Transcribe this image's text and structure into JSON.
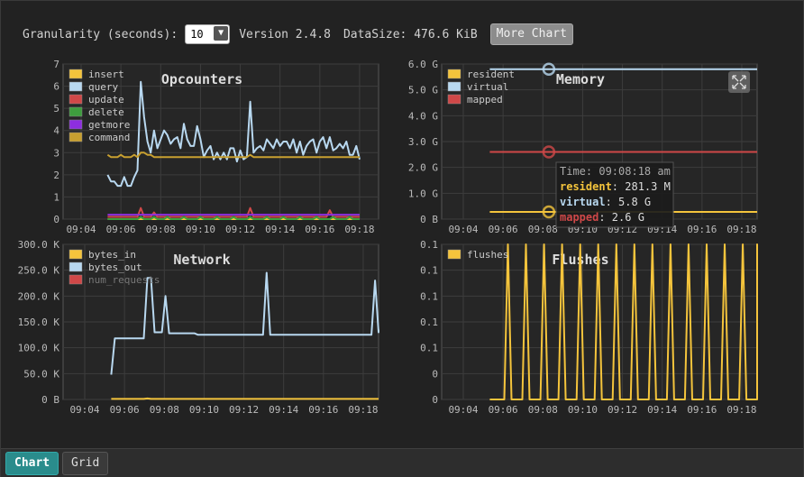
{
  "toolbar": {
    "granularity_label": "Granularity (seconds):",
    "granularity_value": "10",
    "version": "Version 2.4.8",
    "datasize": "DataSize: 476.6 KiB",
    "more_chart": "More Chart"
  },
  "tabs": {
    "chart": "Chart",
    "grid": "Grid"
  },
  "colors": {
    "yellow": "#f4c43c",
    "lightblue": "#b8d8f0",
    "red": "#d04848",
    "green": "#3e9e3e",
    "purple": "#8e2ee0",
    "gold": "#c8a030"
  },
  "tooltip": {
    "time": "Time: 09:08:18 am",
    "rows": [
      {
        "name": "resident",
        "value": ": 281.3 M",
        "color": "#f4c43c"
      },
      {
        "name": "virtual",
        "value": ": 5.8 G",
        "color": "#b8d8f0"
      },
      {
        "name": "mapped",
        "value": ": 2.6 G",
        "color": "#d04848"
      }
    ]
  },
  "chart_data": [
    {
      "type": "line",
      "title": "Opcounters",
      "x_ticks": [
        "09:04",
        "09:06",
        "09:08",
        "09:10",
        "09:12",
        "09:14",
        "09:16",
        "09:18"
      ],
      "y_ticks": [
        "0",
        "1",
        "2",
        "3",
        "4",
        "5",
        "6",
        "7"
      ],
      "ylim": [
        0,
        7
      ],
      "legend_position": "top-left",
      "series": [
        {
          "name": "insert",
          "color": "#f4c43c",
          "values": [
            0,
            0,
            0,
            0,
            0,
            0,
            0,
            0,
            0,
            0,
            0,
            0,
            0,
            0,
            0,
            0,
            0,
            0,
            0,
            0,
            0,
            0,
            0,
            0,
            0,
            0,
            0,
            0,
            0,
            0,
            0,
            0,
            0,
            0,
            0,
            0,
            0,
            0,
            0,
            0,
            0,
            0,
            0,
            0,
            0,
            0,
            0,
            0,
            0,
            0,
            0,
            0,
            0,
            0,
            0,
            0,
            0,
            0,
            0,
            0,
            0,
            0,
            0,
            0,
            0,
            0,
            0,
            0,
            0,
            0,
            0,
            0,
            0,
            0,
            0,
            0,
            0
          ]
        },
        {
          "name": "query",
          "color": "#b8d8f0",
          "values": [
            2.0,
            1.7,
            1.7,
            1.5,
            1.5,
            1.9,
            1.5,
            1.5,
            1.9,
            2.2,
            6.2,
            4.6,
            3.5,
            3.0,
            4.0,
            3.2,
            3.6,
            4.0,
            3.8,
            3.4,
            3.6,
            3.7,
            3.2,
            4.3,
            3.6,
            3.3,
            3.3,
            4.2,
            3.6,
            2.8,
            3.1,
            3.3,
            2.7,
            3.0,
            2.7,
            3.0,
            2.7,
            3.2,
            3.2,
            2.6,
            3.1,
            2.7,
            2.8,
            5.3,
            3.0,
            3.2,
            3.3,
            3.1,
            3.6,
            3.4,
            3.2,
            3.6,
            3.3,
            3.5,
            3.5,
            3.2,
            3.6,
            3.0,
            3.5,
            2.9,
            3.3,
            3.5,
            3.6,
            3.0,
            3.5,
            3.7,
            3.2,
            3.7,
            3.1,
            3.2,
            3.4,
            3.2,
            3.5,
            2.9,
            2.9,
            3.3,
            2.7
          ]
        },
        {
          "name": "update",
          "color": "#d04848",
          "values": [
            0.1,
            0.1,
            0.1,
            0.1,
            0.1,
            0.1,
            0.1,
            0.1,
            0.1,
            0.1,
            0.5,
            0.1,
            0.1,
            0.1,
            0.3,
            0.1,
            0.1,
            0.1,
            0.1,
            0.1,
            0.1,
            0.1,
            0.1,
            0.1,
            0.1,
            0.1,
            0.1,
            0.1,
            0.1,
            0.1,
            0.1,
            0.1,
            0.1,
            0.1,
            0.1,
            0.1,
            0.1,
            0.1,
            0.1,
            0.1,
            0.1,
            0.1,
            0.1,
            0.5,
            0.1,
            0.1,
            0.1,
            0.1,
            0.1,
            0.1,
            0.1,
            0.1,
            0.1,
            0.1,
            0.1,
            0.1,
            0.1,
            0.1,
            0.1,
            0.1,
            0.1,
            0.1,
            0.1,
            0.1,
            0.1,
            0.1,
            0.1,
            0.4,
            0.1,
            0.1,
            0.1,
            0.1,
            0.1,
            0.1,
            0.1,
            0.1,
            0.1
          ]
        },
        {
          "name": "delete",
          "color": "#3e9e3e",
          "values": [
            0,
            0,
            0,
            0,
            0,
            0,
            0,
            0,
            0,
            0,
            0.1,
            0,
            0,
            0,
            0.1,
            0,
            0,
            0,
            0.1,
            0,
            0,
            0,
            0,
            0.1,
            0,
            0,
            0,
            0,
            0.1,
            0,
            0,
            0,
            0,
            0.1,
            0,
            0,
            0,
            0,
            0.1,
            0,
            0,
            0,
            0,
            0.1,
            0,
            0,
            0,
            0,
            0.1,
            0,
            0,
            0,
            0,
            0.1,
            0,
            0,
            0,
            0,
            0.1,
            0,
            0,
            0,
            0,
            0.1,
            0,
            0,
            0,
            0,
            0.1,
            0,
            0,
            0,
            0,
            0.1,
            0,
            0,
            0
          ]
        },
        {
          "name": "getmore",
          "color": "#8e2ee0",
          "values": [
            0.2,
            0.2,
            0.2,
            0.2,
            0.2,
            0.2,
            0.2,
            0.2,
            0.2,
            0.2,
            0.2,
            0.2,
            0.2,
            0.2,
            0.2,
            0.2,
            0.2,
            0.2,
            0.2,
            0.2,
            0.2,
            0.2,
            0.2,
            0.2,
            0.2,
            0.2,
            0.2,
            0.2,
            0.2,
            0.2,
            0.2,
            0.2,
            0.2,
            0.2,
            0.2,
            0.2,
            0.2,
            0.2,
            0.2,
            0.2,
            0.2,
            0.2,
            0.2,
            0.2,
            0.2,
            0.2,
            0.2,
            0.2,
            0.2,
            0.2,
            0.2,
            0.2,
            0.2,
            0.2,
            0.2,
            0.2,
            0.2,
            0.2,
            0.2,
            0.2,
            0.2,
            0.2,
            0.2,
            0.2,
            0.2,
            0.2,
            0.2,
            0.2,
            0.2,
            0.2,
            0.2,
            0.2,
            0.2,
            0.2,
            0.2,
            0.2,
            0.2
          ]
        },
        {
          "name": "command",
          "color": "#c8a030",
          "values": [
            2.9,
            2.8,
            2.8,
            2.8,
            2.9,
            2.8,
            2.8,
            2.8,
            2.9,
            2.8,
            3.0,
            3.0,
            2.9,
            2.9,
            2.8,
            2.8,
            2.8,
            2.8,
            2.8,
            2.8,
            2.8,
            2.8,
            2.8,
            2.8,
            2.8,
            2.8,
            2.8,
            2.8,
            2.8,
            2.8,
            2.8,
            2.8,
            2.8,
            2.8,
            2.8,
            2.8,
            2.8,
            2.8,
            2.8,
            2.8,
            2.8,
            2.8,
            2.8,
            2.9,
            2.8,
            2.8,
            2.8,
            2.8,
            2.8,
            2.8,
            2.8,
            2.8,
            2.8,
            2.8,
            2.8,
            2.8,
            2.8,
            2.8,
            2.8,
            2.8,
            2.8,
            2.8,
            2.8,
            2.8,
            2.8,
            2.8,
            2.8,
            2.8,
            2.8,
            2.8,
            2.8,
            2.8,
            2.8,
            2.8,
            2.8,
            2.8,
            2.8
          ]
        }
      ],
      "x_start": "09:05:20",
      "x_step_seconds": 10
    },
    {
      "type": "line",
      "title": "Memory",
      "x_ticks": [
        "09:04",
        "09:06",
        "09:08",
        "09:10",
        "09:12",
        "09:14",
        "09:16",
        "09:18"
      ],
      "y_ticks": [
        "0 B",
        "1.0 G",
        "2.0 G",
        "3.0 G",
        "4.0 G",
        "5.0 G",
        "6.0 G"
      ],
      "ylim": [
        0,
        6
      ],
      "legend_position": "top-left",
      "series": [
        {
          "name": "resident",
          "color": "#f4c43c",
          "start": "09:05:20",
          "end": "09:19:40",
          "values_gb": [
            0.28,
            0.28
          ]
        },
        {
          "name": "virtual",
          "color": "#b8d8f0",
          "start": "09:05:20",
          "end": "09:19:40",
          "values_gb": [
            5.8,
            5.8
          ]
        },
        {
          "name": "mapped",
          "color": "#d04848",
          "start": "09:05:20",
          "end": "09:19:40",
          "values_gb": [
            2.6,
            2.6
          ]
        }
      ],
      "hover_time": "09:08:18"
    },
    {
      "type": "line",
      "title": "Network",
      "x_ticks": [
        "09:04",
        "09:06",
        "09:08",
        "09:10",
        "09:12",
        "09:14",
        "09:16",
        "09:18"
      ],
      "y_ticks": [
        "0 B",
        "50.0 K",
        "100.0 K",
        "150.0 K",
        "200.0 K",
        "250.0 K",
        "300.0 K"
      ],
      "ylim": [
        0,
        300
      ],
      "legend_position": "top-left",
      "series": [
        {
          "name": "bytes_in",
          "color": "#f4c43c",
          "values_kb": [
            1,
            1,
            1,
            1,
            1,
            1,
            1,
            1,
            1,
            1,
            2,
            1,
            1,
            1,
            1,
            1,
            1,
            1,
            1,
            1,
            1,
            1,
            1,
            1,
            1,
            1,
            1,
            1,
            1,
            1,
            1,
            1,
            1,
            1,
            1,
            1,
            1,
            1,
            1,
            1,
            1,
            1,
            1,
            1,
            1,
            1,
            1,
            1,
            1,
            1,
            1,
            1,
            1,
            1,
            1,
            1,
            1,
            1,
            1,
            1,
            1,
            1,
            1,
            1,
            1,
            1,
            1,
            1,
            1,
            1,
            1,
            1,
            1,
            1,
            1,
            1,
            1
          ]
        },
        {
          "name": "bytes_out",
          "color": "#b8d8f0",
          "values_kb": [
            48,
            118,
            118,
            118,
            118,
            118,
            118,
            118,
            118,
            118,
            235,
            235,
            130,
            130,
            130,
            200,
            128,
            128,
            128,
            128,
            128,
            128,
            128,
            128,
            125,
            125,
            125,
            125,
            125,
            125,
            125,
            125,
            125,
            125,
            125,
            125,
            125,
            125,
            125,
            125,
            125,
            125,
            125,
            245,
            125,
            125,
            125,
            125,
            125,
            125,
            125,
            125,
            125,
            125,
            125,
            125,
            125,
            125,
            125,
            125,
            125,
            125,
            125,
            125,
            125,
            125,
            125,
            125,
            125,
            125,
            125,
            125,
            125,
            230,
            130,
            130,
            135
          ]
        },
        {
          "name": "num_requests",
          "color": "#d04848",
          "values_kb": []
        }
      ]
    },
    {
      "type": "line",
      "title": "Flushes",
      "x_ticks": [
        "09:04",
        "09:06",
        "09:08",
        "09:10",
        "09:12",
        "09:14",
        "09:16",
        "09:18"
      ],
      "y_ticks": [
        "0",
        "0",
        "0.1",
        "0.1",
        "0.1",
        "0.1",
        "0.1"
      ],
      "ylim": [
        0,
        0.1
      ],
      "legend_position": "top-left",
      "series": [
        {
          "name": "flushes",
          "color": "#f4c43c",
          "values": [
            0,
            0,
            0,
            0,
            0,
            0.1,
            0,
            0,
            0,
            0,
            0.1,
            0,
            0,
            0,
            0,
            0.1,
            0,
            0,
            0,
            0,
            0.1,
            0,
            0,
            0,
            0,
            0.1,
            0,
            0,
            0,
            0,
            0.1,
            0,
            0,
            0,
            0,
            0.1,
            0,
            0,
            0,
            0,
            0.1,
            0,
            0,
            0,
            0,
            0.1,
            0,
            0,
            0,
            0,
            0.1,
            0,
            0,
            0,
            0,
            0.1,
            0,
            0,
            0,
            0,
            0.1,
            0,
            0,
            0,
            0,
            0.1,
            0,
            0,
            0,
            0,
            0.1,
            0,
            0,
            0,
            0,
            0.1,
            0,
            0
          ]
        }
      ]
    }
  ]
}
